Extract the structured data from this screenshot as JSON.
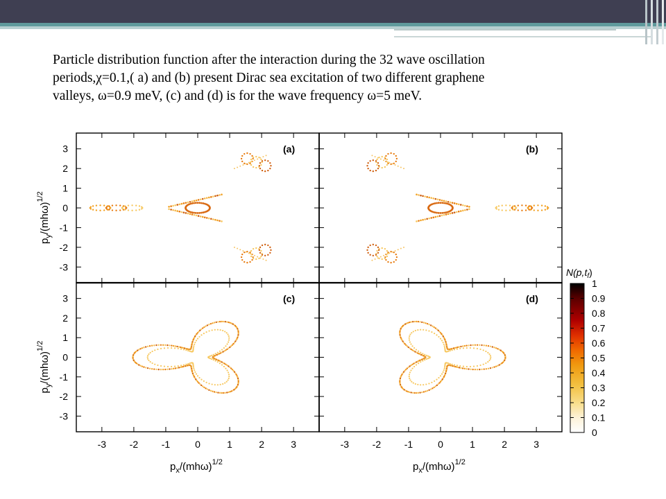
{
  "slide": {
    "caption_lines": [
      "Particle distribution function after the interaction during the 32 wave oscillation",
      "periods,χ=0.1,( a) and (b) present Dirac sea excitation of two different graphene",
      "valleys, ω=0.9 meV,  (c) and (d) is for the wave frequency  ω=5 meV."
    ]
  },
  "chart_data": {
    "type": "heatmap",
    "panels": [
      {
        "label": "(a)",
        "shape": "valley-triangle-left"
      },
      {
        "label": "(b)",
        "shape": "valley-triangle-right"
      },
      {
        "label": "(c)",
        "shape": "trefoil-left"
      },
      {
        "label": "(d)",
        "shape": "trefoil-right"
      }
    ],
    "xlabel": "p",
    "xlabel_sub": "x",
    "xlabel_tail": "/(mhω)",
    "xlabel_exp": "1/2",
    "ylabel": "p",
    "ylabel_sub": "y",
    "ylabel_tail": "/(mhω)",
    "ylabel_exp": "1/2",
    "xlim": [
      -3.8,
      3.8
    ],
    "ylim": [
      -3.8,
      3.8
    ],
    "x_ticks": [
      "-3",
      "-2",
      "-1",
      "0",
      "1",
      "2",
      "3"
    ],
    "y_ticks": [
      "3",
      "2",
      "1",
      "0",
      "-1",
      "-2",
      "-3"
    ],
    "colorbar": {
      "title": "N(p,t",
      "title_sub": "f",
      "title_tail": ")",
      "range": [
        0,
        1
      ],
      "tick_labels": [
        "1",
        "0.9",
        "0.8",
        "0.7",
        "0.6",
        "0.5",
        "0.4",
        "0.3",
        "0.2",
        "0.1",
        "0"
      ],
      "tick_values": [
        1,
        0.9,
        0.8,
        0.7,
        0.6,
        0.5,
        0.4,
        0.3,
        0.2,
        0.1,
        0
      ],
      "gradient_colors": [
        "#000000",
        "#5a0000",
        "#b00000",
        "#e03000",
        "#f06a00",
        "#f09a10",
        "#f3c040",
        "#f8dd8a",
        "#fdf2d8",
        "#ffffff"
      ]
    }
  }
}
